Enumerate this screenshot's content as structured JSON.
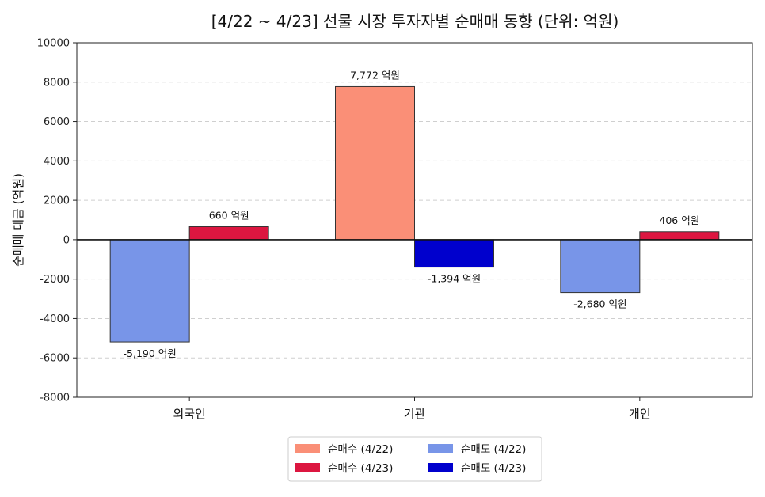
{
  "chart_data": {
    "type": "bar",
    "title": "[4/22 ~ 4/23] 선물 시장 투자자별 순매매 동향 (단위: 억원)",
    "xlabel": "",
    "ylabel": "순매매 대금 (억원)",
    "ylim": [
      -8000,
      10000
    ],
    "yticks": [
      10000,
      8000,
      6000,
      4000,
      2000,
      0,
      -2000,
      -4000,
      -6000,
      -8000
    ],
    "ytick_labels": [
      "10000",
      "8000",
      "6000",
      "4000",
      "2000",
      "0",
      "-2000",
      "-4000",
      "-6000",
      "-8000"
    ],
    "grid": true,
    "categories": [
      "외국인",
      "기관",
      "개인"
    ],
    "series_defs": [
      {
        "name": "순매수 (4/22)",
        "color": "#fa8f77"
      },
      {
        "name": "순매수 (4/23)",
        "color": "#dc1640"
      },
      {
        "name": "순매도 (4/22)",
        "color": "#7895e8"
      },
      {
        "name": "순매도 (4/23)",
        "color": "#0000cd"
      }
    ],
    "bars": [
      {
        "category": "외국인",
        "date": "4/22",
        "value": -5190,
        "series": "순매도 (4/22)",
        "color": "#7895e8",
        "label": "-5,190 억원"
      },
      {
        "category": "외국인",
        "date": "4/23",
        "value": 660,
        "series": "순매수 (4/23)",
        "color": "#dc1640",
        "label": "660 억원"
      },
      {
        "category": "기관",
        "date": "4/22",
        "value": 7772,
        "series": "순매수 (4/22)",
        "color": "#fa8f77",
        "label": "7,772 억원"
      },
      {
        "category": "기관",
        "date": "4/23",
        "value": -1394,
        "series": "순매도 (4/23)",
        "color": "#0000cd",
        "label": "-1,394 억원"
      },
      {
        "category": "개인",
        "date": "4/22",
        "value": -2680,
        "series": "순매도 (4/22)",
        "color": "#7895e8",
        "label": "-2,680 억원"
      },
      {
        "category": "개인",
        "date": "4/23",
        "value": 406,
        "series": "순매수 (4/23)",
        "color": "#dc1640",
        "label": "406 억원"
      }
    ],
    "legend": {
      "position": "bottom-center",
      "entries": [
        {
          "name": "순매수 (4/22)",
          "color": "#fa8f77"
        },
        {
          "name": "순매수 (4/23)",
          "color": "#dc1640"
        },
        {
          "name": "순매도 (4/22)",
          "color": "#7895e8"
        },
        {
          "name": "순매도 (4/23)",
          "color": "#0000cd"
        }
      ]
    }
  }
}
